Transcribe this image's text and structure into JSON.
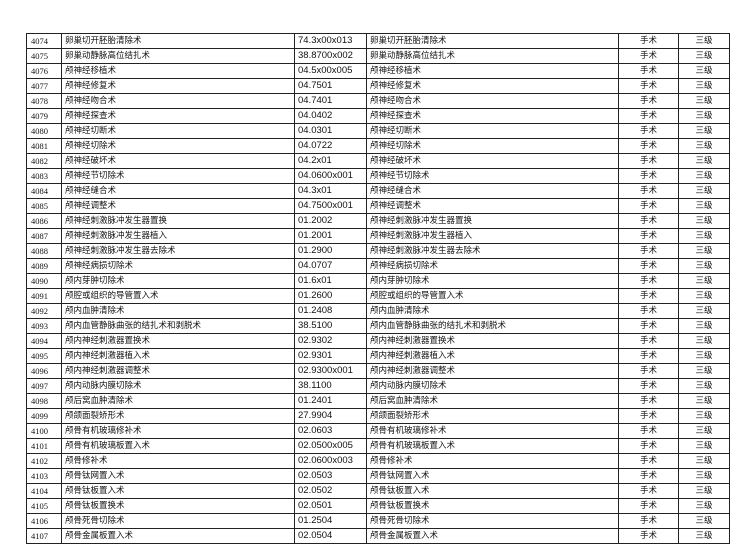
{
  "rows": [
    [
      "4074",
      "卵巢切开胚胎清除术",
      "74.3x00x013",
      "卵巢切开胚胎清除术",
      "手术",
      "三级"
    ],
    [
      "4075",
      "卵巢动静脉高位结扎术",
      "38.8700x002",
      "卵巢动静脉高位结扎术",
      "手术",
      "三级"
    ],
    [
      "4076",
      "颅神经移植术",
      "04.5x00x005",
      "颅神经移植术",
      "手术",
      "三级"
    ],
    [
      "4077",
      "颅神经修复术",
      "04.7501",
      "颅神经修复术",
      "手术",
      "三级"
    ],
    [
      "4078",
      "颅神经吻合术",
      "04.7401",
      "颅神经吻合术",
      "手术",
      "三级"
    ],
    [
      "4079",
      "颅神经探查术",
      "04.0402",
      "颅神经探查术",
      "手术",
      "三级"
    ],
    [
      "4080",
      "颅神经切断术",
      "04.0301",
      "颅神经切断术",
      "手术",
      "三级"
    ],
    [
      "4081",
      "颅神经切除术",
      "04.0722",
      "颅神经切除术",
      "手术",
      "三级"
    ],
    [
      "4082",
      "颅神经破坏术",
      "04.2x01",
      "颅神经破坏术",
      "手术",
      "三级"
    ],
    [
      "4083",
      "颅神经节切除术",
      "04.0600x001",
      "颅神经节切除术",
      "手术",
      "三级"
    ],
    [
      "4084",
      "颅神经缝合术",
      "04.3x01",
      "颅神经缝合术",
      "手术",
      "三级"
    ],
    [
      "4085",
      "颅神经调整术",
      "04.7500x001",
      "颅神经调整术",
      "手术",
      "三级"
    ],
    [
      "4086",
      "颅神经刺激脉冲发生器置换",
      "01.2002",
      "颅神经刺激脉冲发生器置换",
      "手术",
      "三级"
    ],
    [
      "4087",
      "颅神经刺激脉冲发生器植入",
      "01.2001",
      "颅神经刺激脉冲发生器植入",
      "手术",
      "三级"
    ],
    [
      "4088",
      "颅神经刺激脉冲发生器去除术",
      "01.2900",
      "颅神经刺激脉冲发生器去除术",
      "手术",
      "三级"
    ],
    [
      "4089",
      "颅神经病损切除术",
      "04.0707",
      "颅神经病损切除术",
      "手术",
      "三级"
    ],
    [
      "4090",
      "颅内芽肿切除术",
      "01.6x01",
      "颅内芽肿切除术",
      "手术",
      "三级"
    ],
    [
      "4091",
      "颅腔或组织的导管置入术",
      "01.2600",
      "颅腔或组织的导管置入术",
      "手术",
      "三级"
    ],
    [
      "4092",
      "颅内血肿清除术",
      "01.2408",
      "颅内血肿清除术",
      "手术",
      "三级"
    ],
    [
      "4093",
      "颅内血管静脉曲张的结扎术和剥脱术",
      "38.5100",
      "颅内血管静脉曲张的结扎术和剥脱术",
      "手术",
      "三级"
    ],
    [
      "4094",
      "颅内神经刺激器置换术",
      "02.9302",
      "颅内神经刺激器置换术",
      "手术",
      "三级"
    ],
    [
      "4095",
      "颅内神经刺激器植入术",
      "02.9301",
      "颅内神经刺激器植入术",
      "手术",
      "三级"
    ],
    [
      "4096",
      "颅内神经刺激器调整术",
      "02.9300x001",
      "颅内神经刺激器调整术",
      "手术",
      "三级"
    ],
    [
      "4097",
      "颅内动脉内膜切除术",
      "38.1100",
      "颅内动脉内膜切除术",
      "手术",
      "三级"
    ],
    [
      "4098",
      "颅后窝血肿清除术",
      "01.2401",
      "颅后窝血肿清除术",
      "手术",
      "三级"
    ],
    [
      "4099",
      "颅颌面裂矫形术",
      "27.9904",
      "颅颌面裂矫形术",
      "手术",
      "三级"
    ],
    [
      "4100",
      "颅骨有机玻璃修补术",
      "02.0603",
      "颅骨有机玻璃修补术",
      "手术",
      "三级"
    ],
    [
      "4101",
      "颅骨有机玻璃板置入术",
      "02.0500x005",
      "颅骨有机玻璃板置入术",
      "手术",
      "三级"
    ],
    [
      "4102",
      "颅骨修补术",
      "02.0600x003",
      "颅骨修补术",
      "手术",
      "三级"
    ],
    [
      "4103",
      "颅骨钛网置入术",
      "02.0503",
      "颅骨钛网置入术",
      "手术",
      "三级"
    ],
    [
      "4104",
      "颅骨钛板置入术",
      "02.0502",
      "颅骨钛板置入术",
      "手术",
      "三级"
    ],
    [
      "4105",
      "颅骨钛板置换术",
      "02.0501",
      "颅骨钛板置换术",
      "手术",
      "三级"
    ],
    [
      "4106",
      "颅骨死骨切除术",
      "01.2504",
      "颅骨死骨切除术",
      "手术",
      "三级"
    ],
    [
      "4107",
      "颅骨金属板置入术",
      "02.0504",
      "颅骨金属板置入术",
      "手术",
      "三级"
    ]
  ]
}
